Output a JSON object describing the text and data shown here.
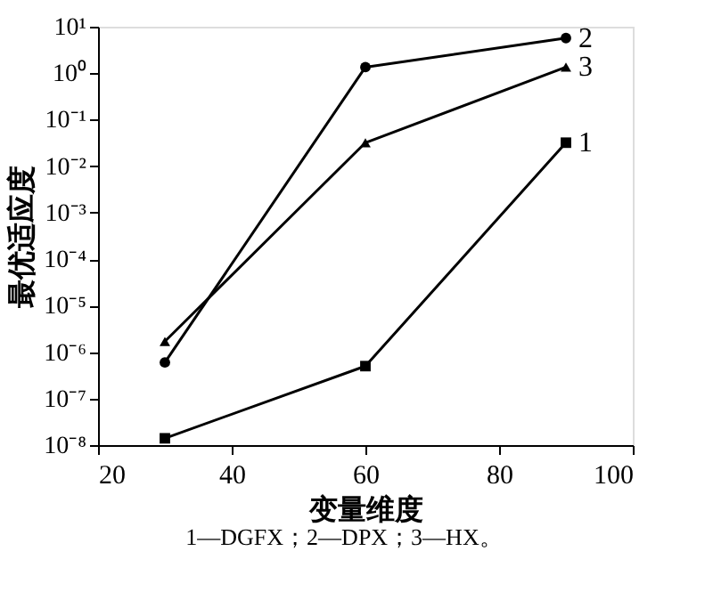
{
  "chart_data": {
    "type": "line",
    "xlabel": "变量维度",
    "ylabel": "最优适应度",
    "x": [
      30,
      60,
      90
    ],
    "log": "y",
    "xlim": [
      20,
      100
    ],
    "xticks": [
      20,
      40,
      60,
      80,
      100
    ],
    "ylim": [
      1e-08,
      10
    ],
    "yticks": [
      {
        "value": 1e-08,
        "label": "10⁻⁸"
      },
      {
        "value": 1e-07,
        "label": "10⁻⁷"
      },
      {
        "value": 1e-06,
        "label": "10⁻⁶"
      },
      {
        "value": 1e-05,
        "label": "10⁻⁵"
      },
      {
        "value": 0.0001,
        "label": "10⁻⁴"
      },
      {
        "value": 0.001,
        "label": "10⁻³"
      },
      {
        "value": 0.01,
        "label": "10⁻²"
      },
      {
        "value": 0.1,
        "label": "10⁻¹"
      },
      {
        "value": 1,
        "label": "10⁰"
      },
      {
        "value": 10,
        "label": "10¹"
      }
    ],
    "grid": false,
    "line_style": "solid",
    "series": [
      {
        "name": "1",
        "color": "#000000",
        "marker": "square",
        "values": [
          1.4e-08,
          5e-07,
          0.032
        ]
      },
      {
        "name": "2",
        "color": "#000000",
        "marker": "circle",
        "values": [
          6e-07,
          1.35,
          5.7
        ]
      },
      {
        "name": "3",
        "color": "#000000",
        "marker": "triangle",
        "values": [
          1.7e-06,
          0.032,
          1.35
        ]
      }
    ],
    "annotations": [
      "1—DGFX；2—DPX；3—HX。"
    ]
  }
}
